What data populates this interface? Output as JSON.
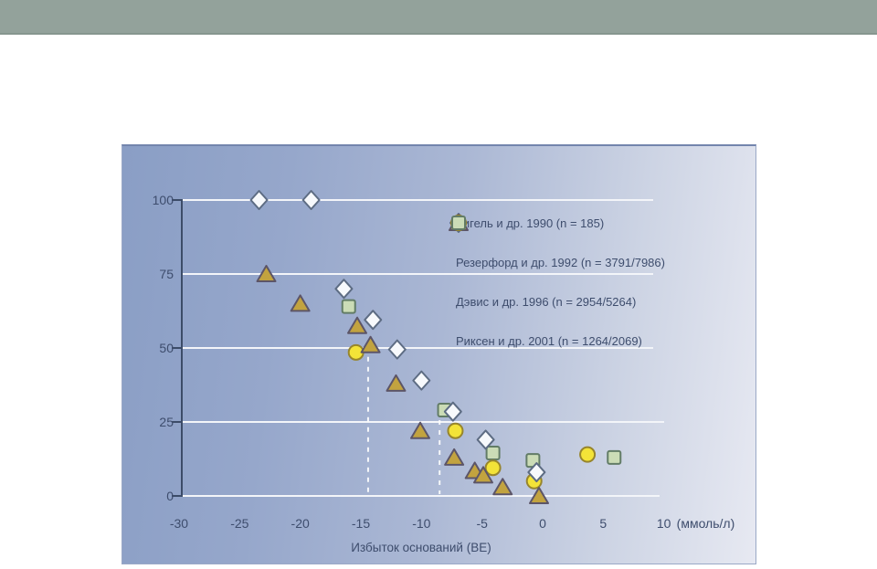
{
  "page": {
    "banner_color": "#93a29b",
    "banner_edge_color": "#86968e",
    "background_color": "#ffffff"
  },
  "chart_data": {
    "type": "scatter",
    "title": "",
    "xlabel": "Избыток оснований (BE)",
    "x_unit_suffix": "(ммоль/л)",
    "ylabel": "",
    "xlim": [
      -30,
      12
    ],
    "ylim": [
      0,
      100
    ],
    "x_ticks": [
      "-30",
      "-25",
      "-20",
      "-15",
      "-10",
      "-5",
      "0",
      "5",
      "10"
    ],
    "x_tick_values": [
      -30,
      -25,
      -20,
      -15,
      -10,
      -5,
      0,
      5,
      10
    ],
    "y_ticks": [
      "100",
      "75",
      "50",
      "25",
      "0"
    ],
    "y_tick_values": [
      100,
      75,
      50,
      25,
      0
    ],
    "grid": "horizontal white gridlines at each y tick",
    "legend_position": "inside upper right",
    "background": "blue gradient panel, darker at left fading to pale lavender at right",
    "text_color": "#3e4d6d",
    "axis_color": "#3c4c68",
    "gridline_color": "#f3f5f9",
    "dashed_reference_lines": [
      {
        "x": -14.4,
        "y_from": 0,
        "y_to": 47
      },
      {
        "x": -8.5,
        "y_from": 0,
        "y_to": 29
      }
    ],
    "series": [
      {
        "name": "Зигель и др. 1990 (n = 185)",
        "marker": "diamond",
        "fill": "#f7f9fc",
        "stroke": "#5d6c83",
        "points": [
          [
            -23.4,
            100
          ],
          [
            -19.1,
            100
          ],
          [
            -16.4,
            70
          ],
          [
            -14,
            59.5
          ],
          [
            -12,
            49.5
          ],
          [
            -10,
            39
          ],
          [
            -7.4,
            28.5
          ],
          [
            -4.7,
            19
          ],
          [
            -0.5,
            8
          ]
        ]
      },
      {
        "name": "Резерфорд и др. 1992 (n = 3791/7986)",
        "marker": "triangle",
        "fill": "#c2a33f",
        "stroke": "#5c5568",
        "points": [
          [
            -22.8,
            75
          ],
          [
            -20,
            65
          ],
          [
            -15.3,
            57.5
          ],
          [
            -14.2,
            51
          ],
          [
            -12.1,
            38
          ],
          [
            -10.1,
            22
          ],
          [
            -7.3,
            13
          ],
          [
            -5.6,
            8.5
          ],
          [
            -4.9,
            7
          ],
          [
            -3.3,
            3
          ],
          [
            -0.3,
            0
          ]
        ]
      },
      {
        "name": "Дэвис и др. 1996 (n = 2954/5264)",
        "marker": "circle",
        "fill": "#f3e338",
        "stroke": "#97852c",
        "points": [
          [
            -15.4,
            48.5
          ],
          [
            -7.2,
            22
          ],
          [
            -4.1,
            9.5
          ],
          [
            -0.7,
            5
          ],
          [
            3.7,
            14
          ]
        ]
      },
      {
        "name": "Риксен и др. 2001 (n = 1264/2069)",
        "marker": "square",
        "fill": "#cbdcb6",
        "stroke": "#627c66",
        "points": [
          [
            -16,
            64
          ],
          [
            -8.1,
            29
          ],
          [
            -4.1,
            14.5
          ],
          [
            -0.8,
            12
          ],
          [
            5.9,
            13
          ]
        ]
      }
    ]
  }
}
